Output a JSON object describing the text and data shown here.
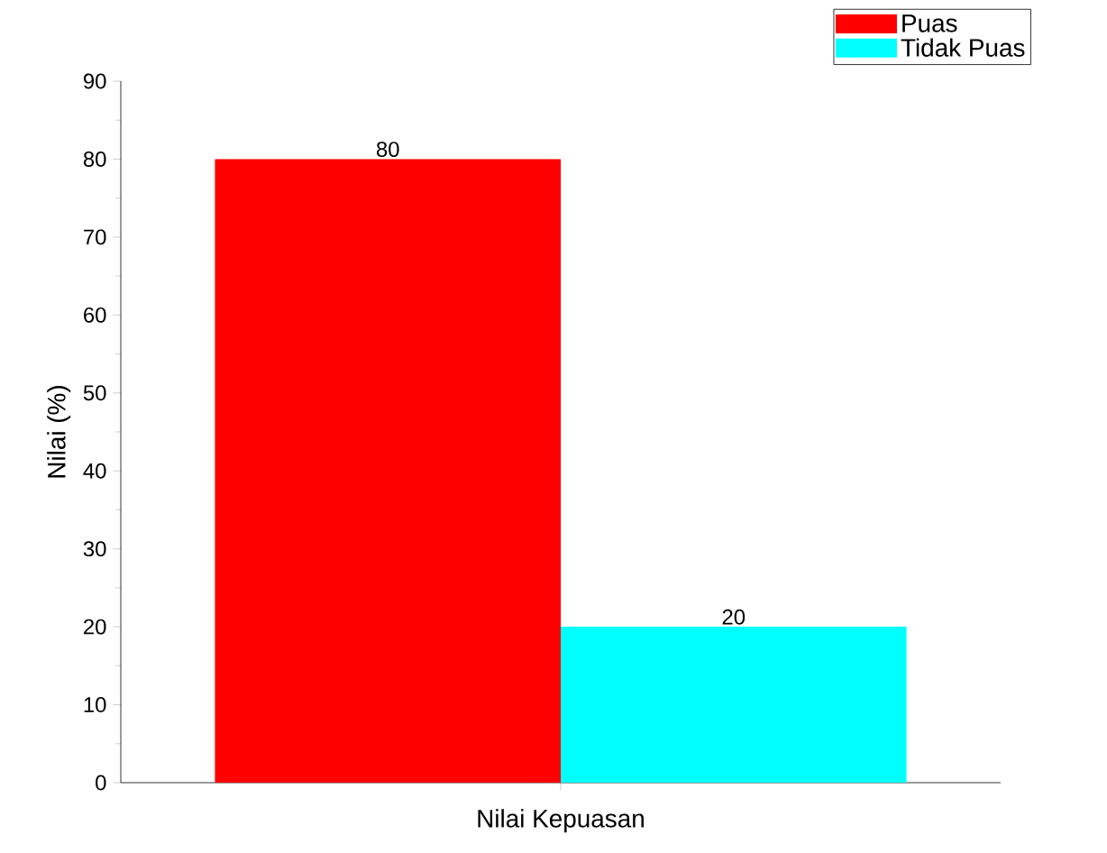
{
  "chart_data": {
    "type": "bar",
    "xlabel": "Nilai Kepuasan",
    "ylabel": "Nilai (%)",
    "categories": [
      null
    ],
    "series": [
      {
        "name": "Puas",
        "color": "#ff0000",
        "values": [
          80
        ]
      },
      {
        "name": "Tidak Puas",
        "color": "#00ffff",
        "values": [
          20
        ]
      }
    ],
    "ylim": [
      0,
      90
    ],
    "yticks": [
      0,
      10,
      20,
      30,
      40,
      50,
      60,
      70,
      80,
      90
    ],
    "data_labels": true,
    "legend": "top right",
    "grid": false
  }
}
